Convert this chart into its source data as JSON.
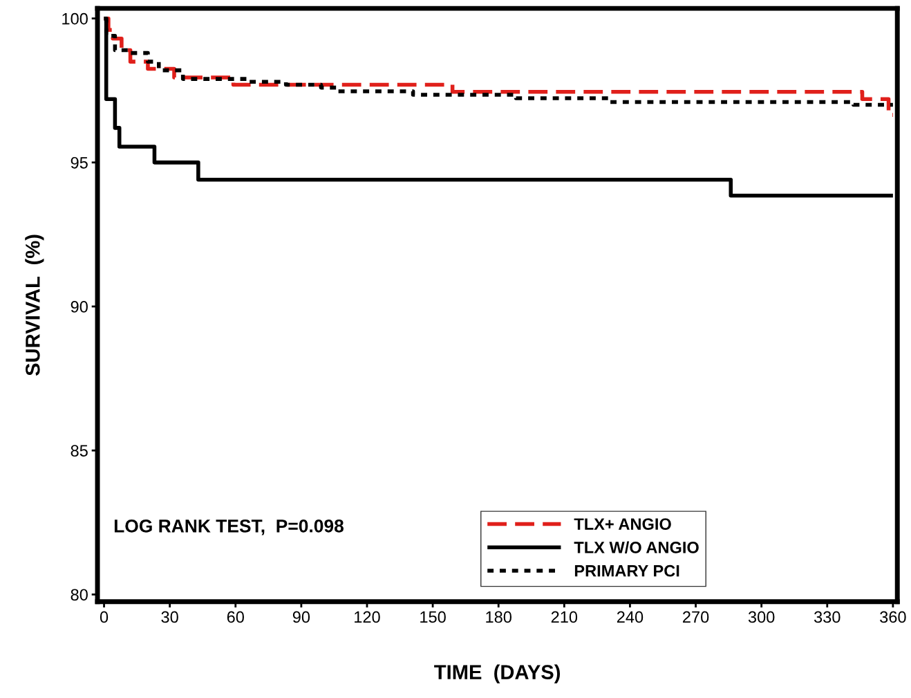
{
  "chart_data": {
    "type": "step",
    "xlabel": "TIME  (DAYS)",
    "ylabel": "SURVIVAL  (%)",
    "xlim": [
      -3,
      362
    ],
    "ylim": [
      79.75,
      100.35
    ],
    "xticks": [
      0,
      30,
      60,
      90,
      120,
      150,
      180,
      210,
      240,
      270,
      300,
      330,
      360
    ],
    "yticks": [
      80,
      85,
      90,
      95,
      100
    ],
    "grid": false,
    "legend": "bottom",
    "marker": "none",
    "annotations": [
      "LOG RANK TEST,  P=0.098"
    ],
    "series": [
      {
        "name": "TLX+ ANGIO",
        "color": "#e0201b",
        "line_style": "dashed",
        "x": [
          0,
          2,
          4,
          8,
          12,
          20,
          32,
          59,
          159,
          346,
          358,
          360
        ],
        "values": [
          100,
          99.6,
          99.3,
          98.9,
          98.5,
          98.25,
          97.95,
          97.7,
          97.45,
          97.2,
          96.65,
          96.65
        ]
      },
      {
        "name": "TLX W/O ANGIO",
        "color": "#000000",
        "line_style": "solid",
        "x": [
          0,
          1,
          5,
          7,
          23,
          43,
          286,
          360
        ],
        "values": [
          100,
          97.2,
          96.2,
          95.55,
          95.0,
          94.4,
          93.85,
          93.85
        ]
      },
      {
        "name": "PRIMARY PCI",
        "color": "#000000",
        "line_style": "dotted",
        "x": [
          0,
          1,
          3,
          5,
          12,
          20,
          25,
          36,
          66,
          83,
          99,
          106,
          141,
          188,
          231,
          342,
          360
        ],
        "values": [
          100,
          99.5,
          99.4,
          98.9,
          98.8,
          98.5,
          98.2,
          97.9,
          97.8,
          97.7,
          97.6,
          97.47,
          97.35,
          97.23,
          97.1,
          97.0,
          97.0
        ]
      }
    ]
  }
}
